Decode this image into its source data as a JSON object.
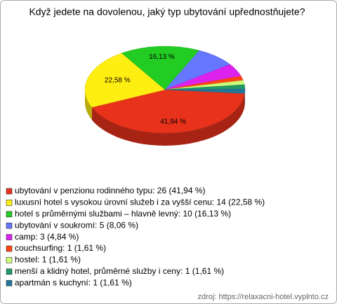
{
  "chart_data": {
    "type": "pie",
    "title": "Když jedete na dovolenou, jaký typ ubytování upřednostňujete?",
    "categories": [
      "ubytování v penzionu rodinného typu: 26 (41,94 %)",
      "luxusní hotel s vysokou úrovní služeb i za vyšší cenu: 14 (22,58 %)",
      "hotel s průměrnými službami – hlavně levný: 10 (16,13 %)",
      "ubytování v soukromí: 5 (8,06 %)",
      "camp: 3 (4,84 %)",
      "couchsurfing: 1 (1,61 %)",
      "hostel: 1 (1,61 %)",
      "menší a klidný hotel, průměrné služby i ceny: 1 (1,61 %)",
      "apartmán s kuchyní: 1 (1,61 %)"
    ],
    "values": [
      41.94,
      22.58,
      16.13,
      8.06,
      4.84,
      1.61,
      1.61,
      1.61,
      1.61
    ],
    "value_labels": [
      "41,94 %",
      "22,58 %",
      "16,13 %",
      null,
      null,
      null,
      null,
      null,
      null
    ],
    "colors": [
      "#e8321c",
      "#ffee11",
      "#22cc22",
      "#6677ff",
      "#dd22ee",
      "#ff4411",
      "#ccff77",
      "#229966",
      "#227799"
    ],
    "source": "zdroj: https://relaxacni-hotel.vyplnto.cz"
  }
}
